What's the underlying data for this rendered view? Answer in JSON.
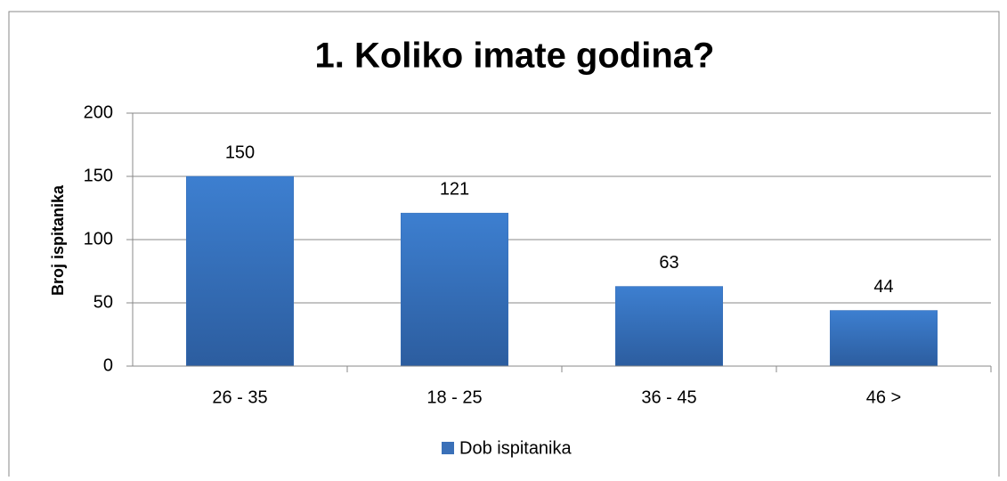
{
  "chart_data": {
    "type": "bar",
    "title": "1. Koliko imate godina?",
    "y_label": "Broj ispitanika",
    "categories": [
      "26 - 35",
      "18 - 25",
      "36 - 45",
      "46 >"
    ],
    "series": [
      {
        "name": "Dob ispitanika",
        "color": "#3a70b8",
        "values": [
          150,
          121,
          63,
          44
        ]
      }
    ],
    "ylim": [
      0,
      200
    ],
    "yticks": [
      0,
      50,
      100,
      150,
      200
    ],
    "grid": true,
    "legend": "bottom"
  }
}
